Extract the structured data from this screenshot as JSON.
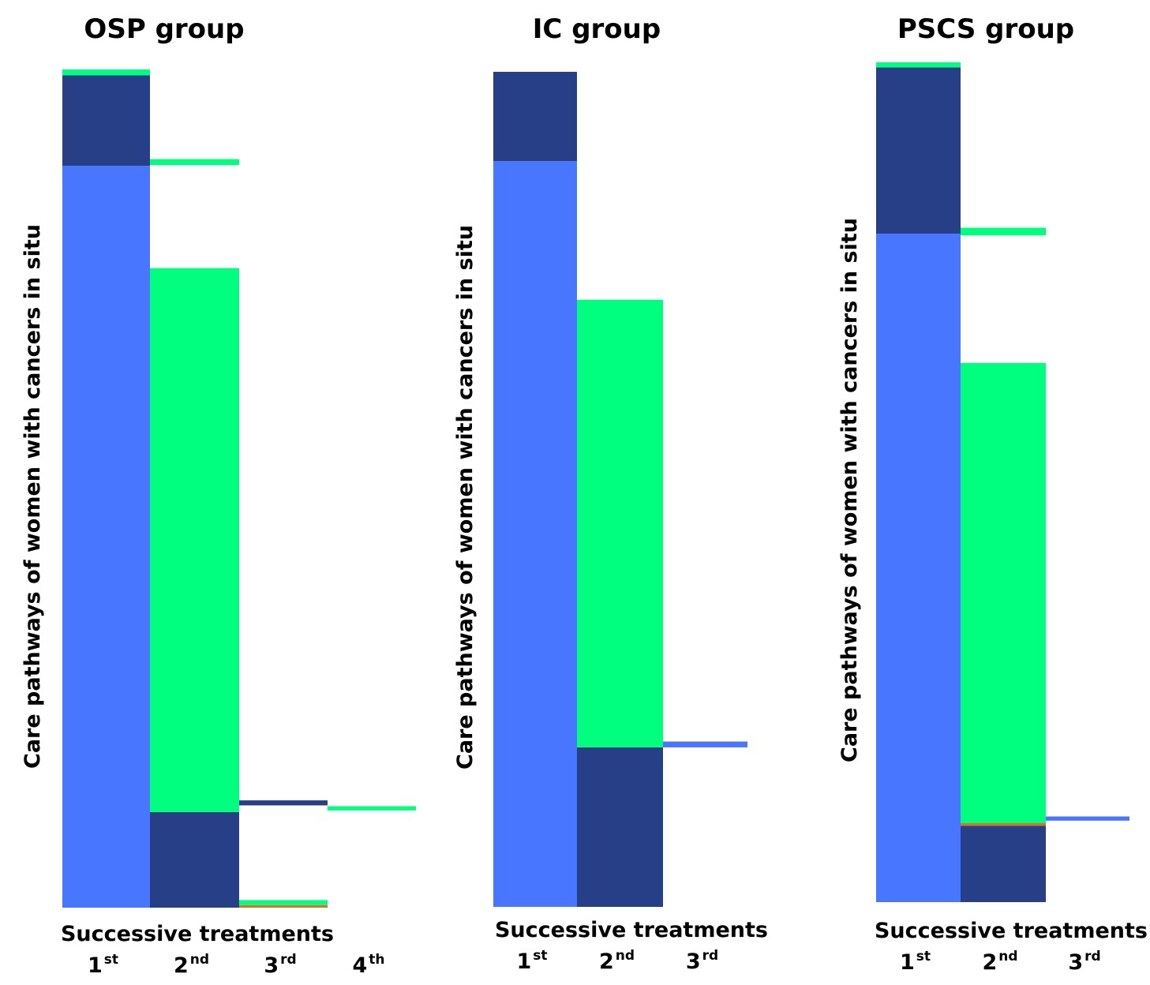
{
  "colors": {
    "first_line": "#4876ff",
    "dark_blue": "#273f87",
    "green": "#00ff7f",
    "orange": "#e07020"
  },
  "chart_data": [
    {
      "type": "bar",
      "title": "OSP group",
      "ylabel": "Care pathways of women with cancers in situ",
      "xlabel": "Successive treatments",
      "categories": [
        {
          "num": "1",
          "sup": "st"
        },
        {
          "num": "2",
          "sup": "nd"
        },
        {
          "num": "3",
          "sup": "rd"
        },
        {
          "num": "4",
          "sup": "th"
        }
      ],
      "ylim": [
        0,
        100
      ],
      "columns": [
        {
          "segments": [
            {
              "color": "first_line",
              "value": 88.5
            },
            {
              "color": "dark_blue",
              "value": 10.8
            },
            {
              "color": "green",
              "value": 0.7
            }
          ]
        },
        {
          "segments": [
            {
              "color": "dark_blue",
              "value": 11.4
            },
            {
              "color": "green",
              "value": 64.9
            },
            {
              "gap": true,
              "value": 12.3
            },
            {
              "color": "green",
              "value": 0.7
            }
          ]
        },
        {
          "segments": [
            {
              "color": "orange",
              "value": 0.3
            },
            {
              "color": "green",
              "value": 0.6
            },
            {
              "gap": true,
              "value": 11.3
            },
            {
              "color": "dark_blue",
              "value": 0.6
            }
          ]
        },
        {
          "segments": [
            {
              "gap": true,
              "value": 11.6
            },
            {
              "color": "green",
              "value": 0.5
            }
          ]
        }
      ]
    },
    {
      "type": "bar",
      "title": "IC group",
      "ylabel": "Care pathways of women with cancers in situ",
      "xlabel": "Successive treatments",
      "categories": [
        {
          "num": "1",
          "sup": "st"
        },
        {
          "num": "2",
          "sup": "nd"
        },
        {
          "num": "3",
          "sup": "rd"
        }
      ],
      "ylim": [
        0,
        100
      ],
      "columns": [
        {
          "segments": [
            {
              "color": "first_line",
              "value": 89.3
            },
            {
              "color": "dark_blue",
              "value": 10.7
            }
          ]
        },
        {
          "segments": [
            {
              "color": "dark_blue",
              "value": 19.1
            },
            {
              "color": "green",
              "value": 53.6
            }
          ]
        },
        {
          "segments": [
            {
              "gap": true,
              "value": 19.1
            },
            {
              "color": "first_line",
              "value": 0.7
            }
          ]
        }
      ]
    },
    {
      "type": "bar",
      "title": "PSCS group",
      "ylabel": "Care pathways of women with cancers in situ",
      "xlabel": "Successive treatments",
      "categories": [
        {
          "num": "1",
          "sup": "st"
        },
        {
          "num": "2",
          "sup": "nd"
        },
        {
          "num": "3",
          "sup": "rd"
        }
      ],
      "ylim": [
        0,
        100
      ],
      "columns": [
        {
          "segments": [
            {
              "color": "first_line",
              "value": 79.6
            },
            {
              "color": "dark_blue",
              "value": 19.8
            },
            {
              "color": "green",
              "value": 0.6
            }
          ]
        },
        {
          "segments": [
            {
              "color": "dark_blue",
              "value": 9.1
            },
            {
              "color": "orange",
              "value": 0.3
            },
            {
              "color": "green",
              "value": 54.8
            },
            {
              "gap": true,
              "value": 15.2
            },
            {
              "color": "green",
              "value": 0.9
            }
          ]
        },
        {
          "segments": [
            {
              "gap": true,
              "value": 9.7
            },
            {
              "color": "first_line",
              "value": 0.5
            }
          ]
        }
      ]
    }
  ]
}
